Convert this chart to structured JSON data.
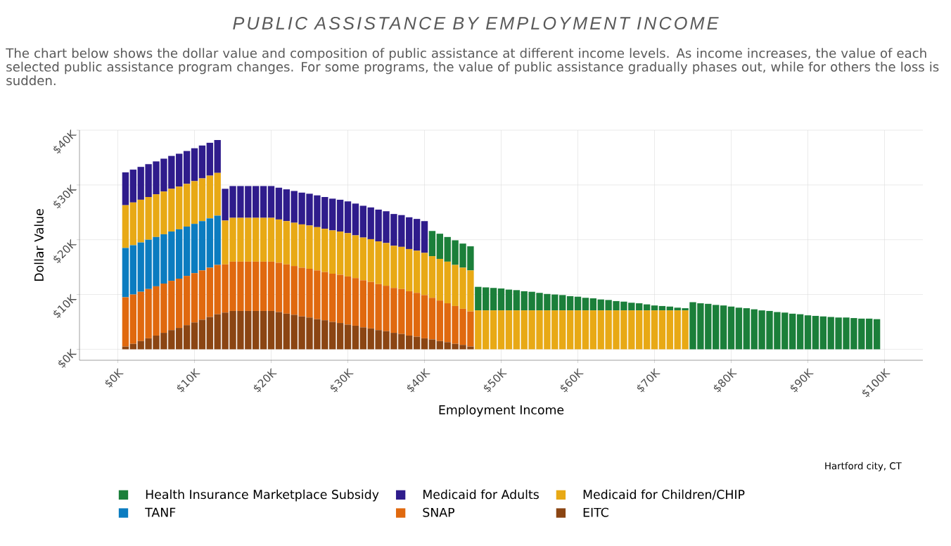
{
  "chart_data": {
    "type": "bar",
    "title": "PUBLIC ASSISTANCE BY EMPLOYMENT INCOME",
    "subtitle": "The chart below shows the dollar value and composition of public assistance at different income levels. As income increases, the value of each selected public assistance program changes. For some programs, the value of public assistance gradually phases out, while for others the loss is sudden.",
    "xlabel": "Employment Income",
    "ylabel": "Dollar Value",
    "annotations": [
      "Hartford city, CT"
    ],
    "stacked": true,
    "grid": true,
    "legend": "bottom",
    "xlim": [
      -5,
      105
    ],
    "ylim": [
      -2,
      40
    ],
    "xticks": [
      {
        "value": 0,
        "label": "$0K"
      },
      {
        "value": 10,
        "label": "$10K"
      },
      {
        "value": 20,
        "label": "$20K"
      },
      {
        "value": 30,
        "label": "$30K"
      },
      {
        "value": 40,
        "label": "$40K"
      },
      {
        "value": 50,
        "label": "$50K"
      },
      {
        "value": 60,
        "label": "$60K"
      },
      {
        "value": 70,
        "label": "$70K"
      },
      {
        "value": 80,
        "label": "$80K"
      },
      {
        "value": 90,
        "label": "$90K"
      },
      {
        "value": 100,
        "label": "$100K"
      }
    ],
    "yticks": [
      {
        "value": 0,
        "label": "$0K"
      },
      {
        "value": 10,
        "label": "$10K"
      },
      {
        "value": 20,
        "label": "$20K"
      },
      {
        "value": 30,
        "label": "$30K"
      },
      {
        "value": 40,
        "label": "$40K"
      }
    ],
    "x": [
      1,
      2,
      3,
      4,
      5,
      6,
      7,
      8,
      9,
      10,
      11,
      12,
      13,
      14,
      15,
      16,
      17,
      18,
      19,
      20,
      21,
      22,
      23,
      24,
      25,
      26,
      27,
      28,
      29,
      30,
      31,
      32,
      33,
      34,
      35,
      36,
      37,
      38,
      39,
      40,
      41,
      42,
      43,
      44,
      45,
      46,
      47,
      48,
      49,
      50,
      51,
      52,
      53,
      54,
      55,
      56,
      57,
      58,
      59,
      60,
      61,
      62,
      63,
      64,
      65,
      66,
      67,
      68,
      69,
      70,
      71,
      72,
      73,
      74,
      75,
      76,
      77,
      78,
      79,
      80,
      81,
      82,
      83,
      84,
      85,
      86,
      87,
      88,
      89,
      90,
      91,
      92,
      93,
      94,
      95,
      96,
      97,
      98,
      99
    ],
    "series": [
      {
        "name": "EITC",
        "color": "#8b4513",
        "values": [
          0.5,
          1.0,
          1.5,
          2.0,
          2.5,
          3.0,
          3.5,
          3.9,
          4.4,
          4.9,
          5.4,
          5.9,
          6.4,
          6.7,
          7.0,
          7.0,
          7.0,
          7.0,
          7.0,
          7.0,
          6.8,
          6.5,
          6.3,
          6.0,
          5.8,
          5.5,
          5.3,
          5.0,
          4.8,
          4.5,
          4.3,
          4.0,
          3.8,
          3.5,
          3.3,
          3.0,
          2.8,
          2.5,
          2.3,
          2.0,
          1.8,
          1.5,
          1.3,
          1.0,
          0.8,
          0.5,
          null,
          null,
          null,
          null,
          null,
          null,
          null,
          null,
          null,
          null,
          null,
          null,
          null,
          null,
          null,
          null,
          null,
          null,
          null,
          null,
          null,
          null,
          null,
          null,
          null,
          null,
          null,
          null,
          null,
          null,
          null,
          null,
          null,
          null,
          null,
          null,
          null,
          null,
          null,
          null,
          null,
          null,
          null,
          null,
          null,
          null,
          null,
          null,
          null,
          null,
          null,
          null,
          null
        ]
      },
      {
        "name": "SNAP",
        "color": "#e0690f",
        "values": [
          9.0,
          9.0,
          9.0,
          9.0,
          9.0,
          9.0,
          9.0,
          9.0,
          9.0,
          9.0,
          9.0,
          9.0,
          9.0,
          8.8,
          9.0,
          9.0,
          9.0,
          9.0,
          9.0,
          9.0,
          9.0,
          9.0,
          8.9,
          8.9,
          8.9,
          8.9,
          8.8,
          8.8,
          8.8,
          8.8,
          8.7,
          8.6,
          8.5,
          8.4,
          8.3,
          8.2,
          8.2,
          8.1,
          8.0,
          7.9,
          7.6,
          7.4,
          7.1,
          6.9,
          6.6,
          6.4,
          null,
          null,
          null,
          null,
          null,
          null,
          null,
          null,
          null,
          null,
          null,
          null,
          null,
          null,
          null,
          null,
          null,
          null,
          null,
          null,
          null,
          null,
          null,
          null,
          null,
          null,
          null,
          null,
          null,
          null,
          null,
          null,
          null,
          null,
          null,
          null,
          null,
          null,
          null,
          null,
          null,
          null,
          null,
          null,
          null,
          null,
          null,
          null,
          null,
          null,
          null,
          null,
          null
        ]
      },
      {
        "name": "TANF",
        "color": "#0b7cc0",
        "values": [
          9.0,
          9.0,
          9.0,
          9.0,
          9.0,
          9.0,
          9.0,
          9.0,
          9.0,
          9.0,
          9.0,
          9.0,
          9.0,
          null,
          null,
          null,
          null,
          null,
          null,
          null,
          null,
          null,
          null,
          null,
          null,
          null,
          null,
          null,
          null,
          null,
          null,
          null,
          null,
          null,
          null,
          null,
          null,
          null,
          null,
          null,
          null,
          null,
          null,
          null,
          null,
          null,
          null,
          null,
          null,
          null,
          null,
          null,
          null,
          null,
          null,
          null,
          null,
          null,
          null,
          null,
          null,
          null,
          null,
          null,
          null,
          null,
          null,
          null,
          null,
          null,
          null,
          null,
          null,
          null,
          null,
          null,
          null,
          null,
          null,
          null,
          null,
          null,
          null,
          null,
          null,
          null,
          null,
          null,
          null,
          null,
          null,
          null,
          null,
          null,
          null,
          null,
          null,
          null,
          null
        ]
      },
      {
        "name": "Medicaid for Children/CHIP",
        "color": "#e8a915",
        "values": [
          7.8,
          7.8,
          7.8,
          7.8,
          7.8,
          7.8,
          7.8,
          7.8,
          7.8,
          7.8,
          7.8,
          7.8,
          7.8,
          8.0,
          8.0,
          8.0,
          8.0,
          8.0,
          8.0,
          8.0,
          7.9,
          7.9,
          7.9,
          7.9,
          7.9,
          7.9,
          7.9,
          7.9,
          7.9,
          7.9,
          7.8,
          7.8,
          7.8,
          7.8,
          7.8,
          7.7,
          7.7,
          7.7,
          7.7,
          7.7,
          7.6,
          7.6,
          7.6,
          7.5,
          7.5,
          7.5,
          7.1,
          7.1,
          7.1,
          7.1,
          7.1,
          7.1,
          7.1,
          7.1,
          7.1,
          7.1,
          7.1,
          7.1,
          7.1,
          7.1,
          7.1,
          7.1,
          7.1,
          7.1,
          7.1,
          7.1,
          7.1,
          7.1,
          7.1,
          7.1,
          7.1,
          7.1,
          7.1,
          7.1,
          null,
          null,
          null,
          null,
          null,
          null,
          null,
          null,
          null,
          null,
          null,
          null,
          null,
          null,
          null,
          null,
          null,
          null,
          null,
          null,
          null,
          null,
          null,
          null,
          null
        ]
      },
      {
        "name": "Medicaid for Adults",
        "color": "#2f1c8c",
        "values": [
          6.0,
          6.0,
          6.0,
          6.0,
          6.0,
          6.0,
          6.0,
          6.0,
          6.0,
          6.0,
          6.0,
          6.0,
          6.0,
          5.8,
          5.8,
          5.8,
          5.8,
          5.8,
          5.8,
          5.8,
          5.8,
          5.8,
          5.8,
          5.8,
          5.8,
          5.8,
          5.8,
          5.8,
          5.8,
          5.8,
          5.8,
          5.8,
          5.8,
          5.8,
          5.8,
          5.8,
          5.8,
          5.8,
          5.8,
          5.8,
          null,
          null,
          null,
          null,
          null,
          null,
          null,
          null,
          null,
          null,
          null,
          null,
          null,
          null,
          null,
          null,
          null,
          null,
          null,
          null,
          null,
          null,
          null,
          null,
          null,
          null,
          null,
          null,
          null,
          null,
          null,
          null,
          null,
          null,
          null,
          null,
          null,
          null,
          null,
          null,
          null,
          null,
          null,
          null,
          null,
          null,
          null,
          null,
          null,
          null,
          null,
          null,
          null,
          null,
          null,
          null,
          null,
          null,
          null
        ]
      },
      {
        "name": "Health Insurance Marketplace Subsidy",
        "color": "#1b7f3a",
        "values": [
          null,
          null,
          null,
          null,
          null,
          null,
          null,
          null,
          null,
          null,
          null,
          null,
          null,
          null,
          null,
          null,
          null,
          null,
          null,
          null,
          null,
          null,
          null,
          null,
          null,
          null,
          null,
          null,
          null,
          null,
          null,
          null,
          null,
          null,
          null,
          null,
          null,
          null,
          null,
          null,
          4.6,
          4.6,
          4.5,
          4.5,
          4.4,
          4.4,
          4.3,
          4.2,
          4.1,
          4.0,
          3.8,
          3.7,
          3.5,
          3.4,
          3.2,
          3.0,
          2.9,
          2.8,
          2.6,
          2.5,
          2.3,
          2.2,
          2.0,
          1.9,
          1.7,
          1.6,
          1.4,
          1.3,
          1.1,
          0.9,
          0.8,
          0.7,
          0.5,
          0.4,
          8.6,
          8.4,
          8.3,
          8.1,
          8.0,
          7.8,
          7.6,
          7.5,
          7.3,
          7.1,
          7.0,
          6.8,
          6.7,
          6.5,
          6.4,
          6.2,
          6.1,
          6.0,
          5.9,
          5.8,
          5.8,
          5.7,
          5.6,
          5.6,
          5.5
        ]
      }
    ]
  }
}
